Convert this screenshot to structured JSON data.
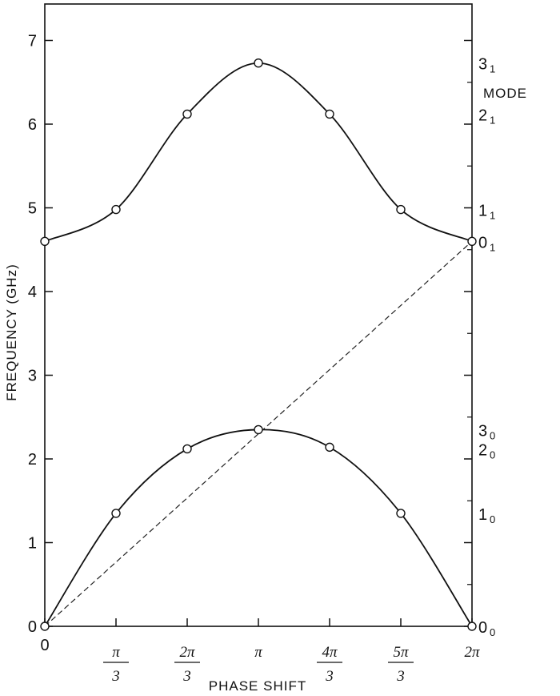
{
  "chart_data": {
    "type": "line",
    "xlabel": "PHASE SHIFT",
    "ylabel": "FREQUENCY (GHz)",
    "right_axis_title": "MODE",
    "xlim": [
      0,
      6
    ],
    "ylim": [
      0,
      7.5
    ],
    "grid": false,
    "x_ticks": [
      {
        "x": 0,
        "num": "0",
        "den": ""
      },
      {
        "x": 1,
        "num": "π",
        "den": "3"
      },
      {
        "x": 2,
        "num": "2π",
        "den": "3"
      },
      {
        "x": 3,
        "num": "π",
        "den": ""
      },
      {
        "x": 4,
        "num": "4π",
        "den": "3"
      },
      {
        "x": 5,
        "num": "5π",
        "den": "3"
      },
      {
        "x": 6,
        "num": "2π",
        "den": ""
      }
    ],
    "y_ticks": [
      0,
      1,
      2,
      3,
      4,
      5,
      6,
      7
    ],
    "series": [
      {
        "style": "solid-with-circles",
        "x": [
          0,
          1,
          2,
          3,
          4,
          5,
          6
        ],
        "y": [
          0.0,
          1.35,
          2.12,
          2.35,
          2.14,
          1.35,
          0.0
        ]
      },
      {
        "style": "solid-with-circles",
        "x": [
          0,
          1,
          2,
          3,
          4,
          5,
          6
        ],
        "y": [
          4.6,
          4.98,
          6.12,
          6.73,
          6.12,
          4.98,
          4.6
        ]
      },
      {
        "style": "dashed",
        "x": [
          0,
          6
        ],
        "y": [
          0.0,
          4.6
        ]
      }
    ],
    "mode_labels": [
      {
        "main": "3",
        "sub": "1",
        "y": 6.73
      },
      {
        "main": "2",
        "sub": "1",
        "y": 6.12
      },
      {
        "main": "1",
        "sub": "1",
        "y": 4.98
      },
      {
        "main": "0",
        "sub": "1",
        "y": 4.6
      },
      {
        "main": "3",
        "sub": "0",
        "y": 2.35
      },
      {
        "main": "2",
        "sub": "0",
        "y": 2.12
      },
      {
        "main": "1",
        "sub": "0",
        "y": 1.35
      },
      {
        "main": "0",
        "sub": "0",
        "y": 0.0
      }
    ]
  }
}
